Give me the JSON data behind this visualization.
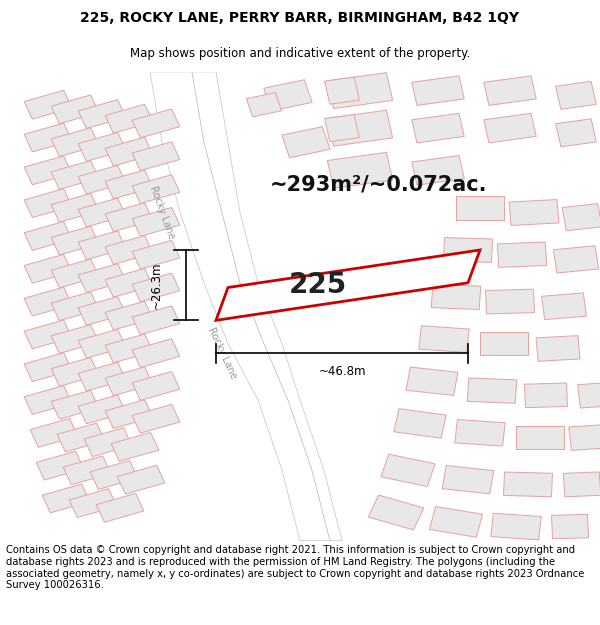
{
  "title_line1": "225, ROCKY LANE, PERRY BARR, BIRMINGHAM, B42 1QY",
  "title_line2": "Map shows position and indicative extent of the property.",
  "area_text": "~293m²/~0.072ac.",
  "label_225": "225",
  "dim_width": "~46.8m",
  "dim_height": "~26.3m",
  "footer_text": "Contains OS data © Crown copyright and database right 2021. This information is subject to Crown copyright and database rights 2023 and is reproduced with the permission of HM Land Registry. The polygons (including the associated geometry, namely x, y co-ordinates) are subject to Crown copyright and database rights 2023 Ordnance Survey 100026316.",
  "bg_color": "#ffffff",
  "map_bg": "#ffffff",
  "building_fill": "#e8e8e8",
  "building_edge": "#e8a0a0",
  "road_edge": "#c8c0c0",
  "highlight_stroke": "#cc0000",
  "dim_color": "#000000",
  "title_fontsize": 10,
  "subtitle_fontsize": 8.5,
  "area_fontsize": 15,
  "label_fontsize": 20,
  "footer_fontsize": 7.2,
  "rocky_lane_color": "#c8c8c8",
  "road_fill": "#ffffff"
}
